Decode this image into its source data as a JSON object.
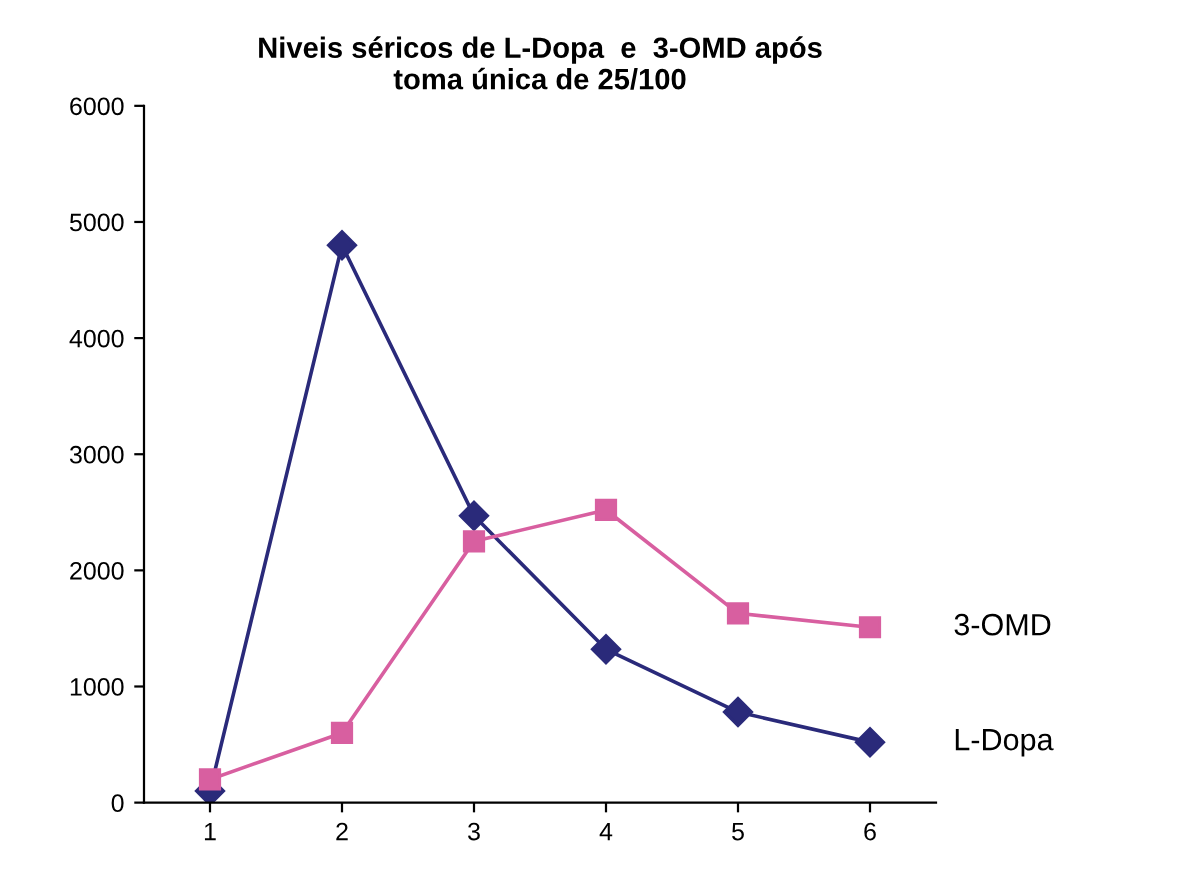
{
  "chart_data": {
    "type": "line",
    "title": "Niveis séricos de L-Dopa  e  3-OMD após\ntoma única de 25/100",
    "categories": [
      "1",
      "2",
      "3",
      "4",
      "5",
      "6"
    ],
    "series": [
      {
        "name": "L-Dopa",
        "color": "#2a2a7a",
        "marker": "diamond",
        "values": [
          100,
          4800,
          2470,
          1320,
          780,
          520
        ]
      },
      {
        "name": "3-OMD",
        "color": "#d85fa0",
        "marker": "square",
        "values": [
          200,
          600,
          2250,
          2520,
          1630,
          1510
        ]
      }
    ],
    "ylim": [
      0,
      6000
    ],
    "yticks": [
      0,
      1000,
      2000,
      3000,
      4000,
      5000,
      6000
    ],
    "grid": false,
    "legend": false
  }
}
